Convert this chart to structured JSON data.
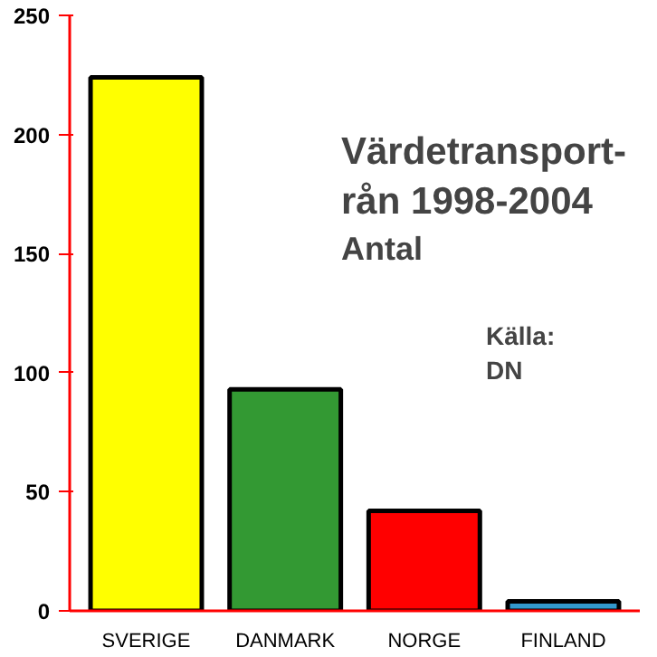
{
  "chart_data": {
    "type": "bar",
    "title": "Värdetransport-\nrån 1998-2004",
    "subtitle": "Antal",
    "annotations": [
      "Källa:\nDN"
    ],
    "categories": [
      "SVERIGE",
      "DANMARK",
      "NORGE",
      "FINLAND"
    ],
    "values": [
      224,
      93,
      42,
      4
    ],
    "colors": [
      "#ffff00",
      "#339933",
      "#ff0000",
      "#3399cc"
    ],
    "ylim": [
      0,
      250
    ],
    "yticks": [
      0,
      50,
      100,
      150,
      200,
      250
    ],
    "grid": false
  }
}
